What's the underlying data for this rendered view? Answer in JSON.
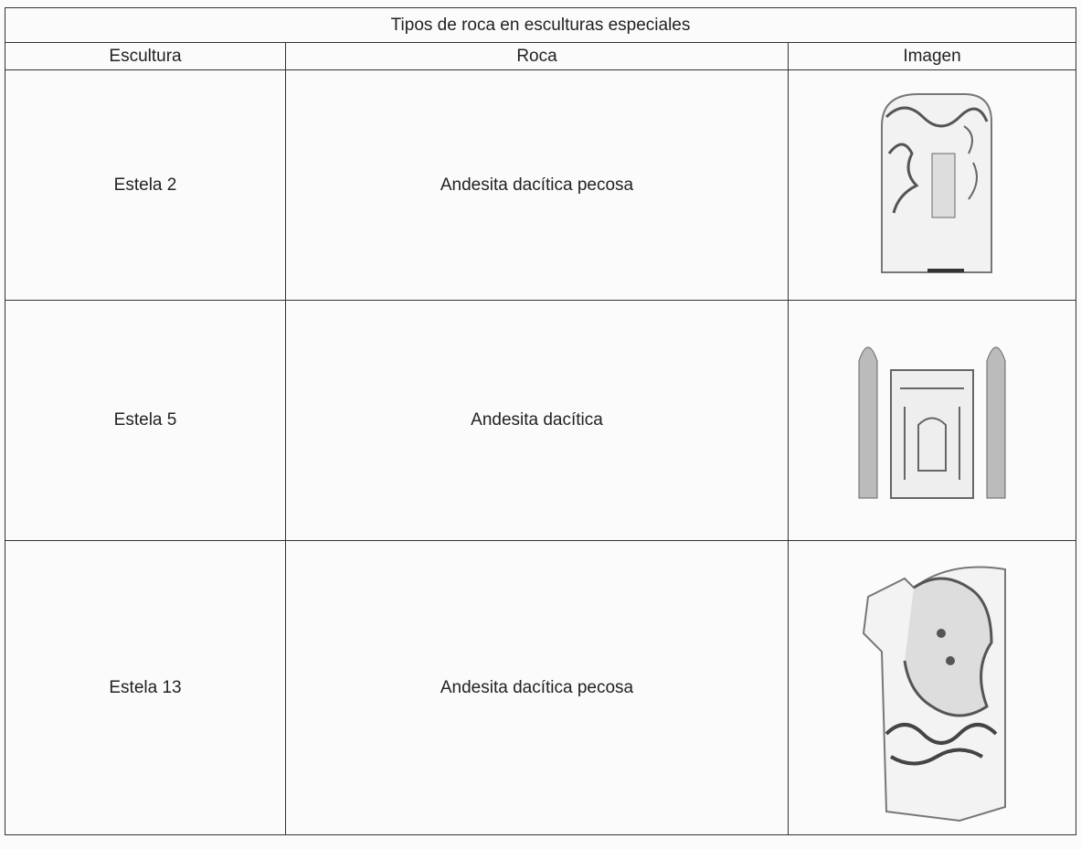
{
  "table": {
    "title": "Tipos de roca en esculturas especiales",
    "headers": [
      "Escultura",
      "Roca",
      "Imagen"
    ],
    "rows": [
      [
        "Estela 2",
        "Andesita dacítica pecosa"
      ],
      [
        "Estela 5",
        "Andesita dacítica"
      ],
      [
        "Estela 13",
        "Andesita dacítica pecosa"
      ]
    ]
  }
}
